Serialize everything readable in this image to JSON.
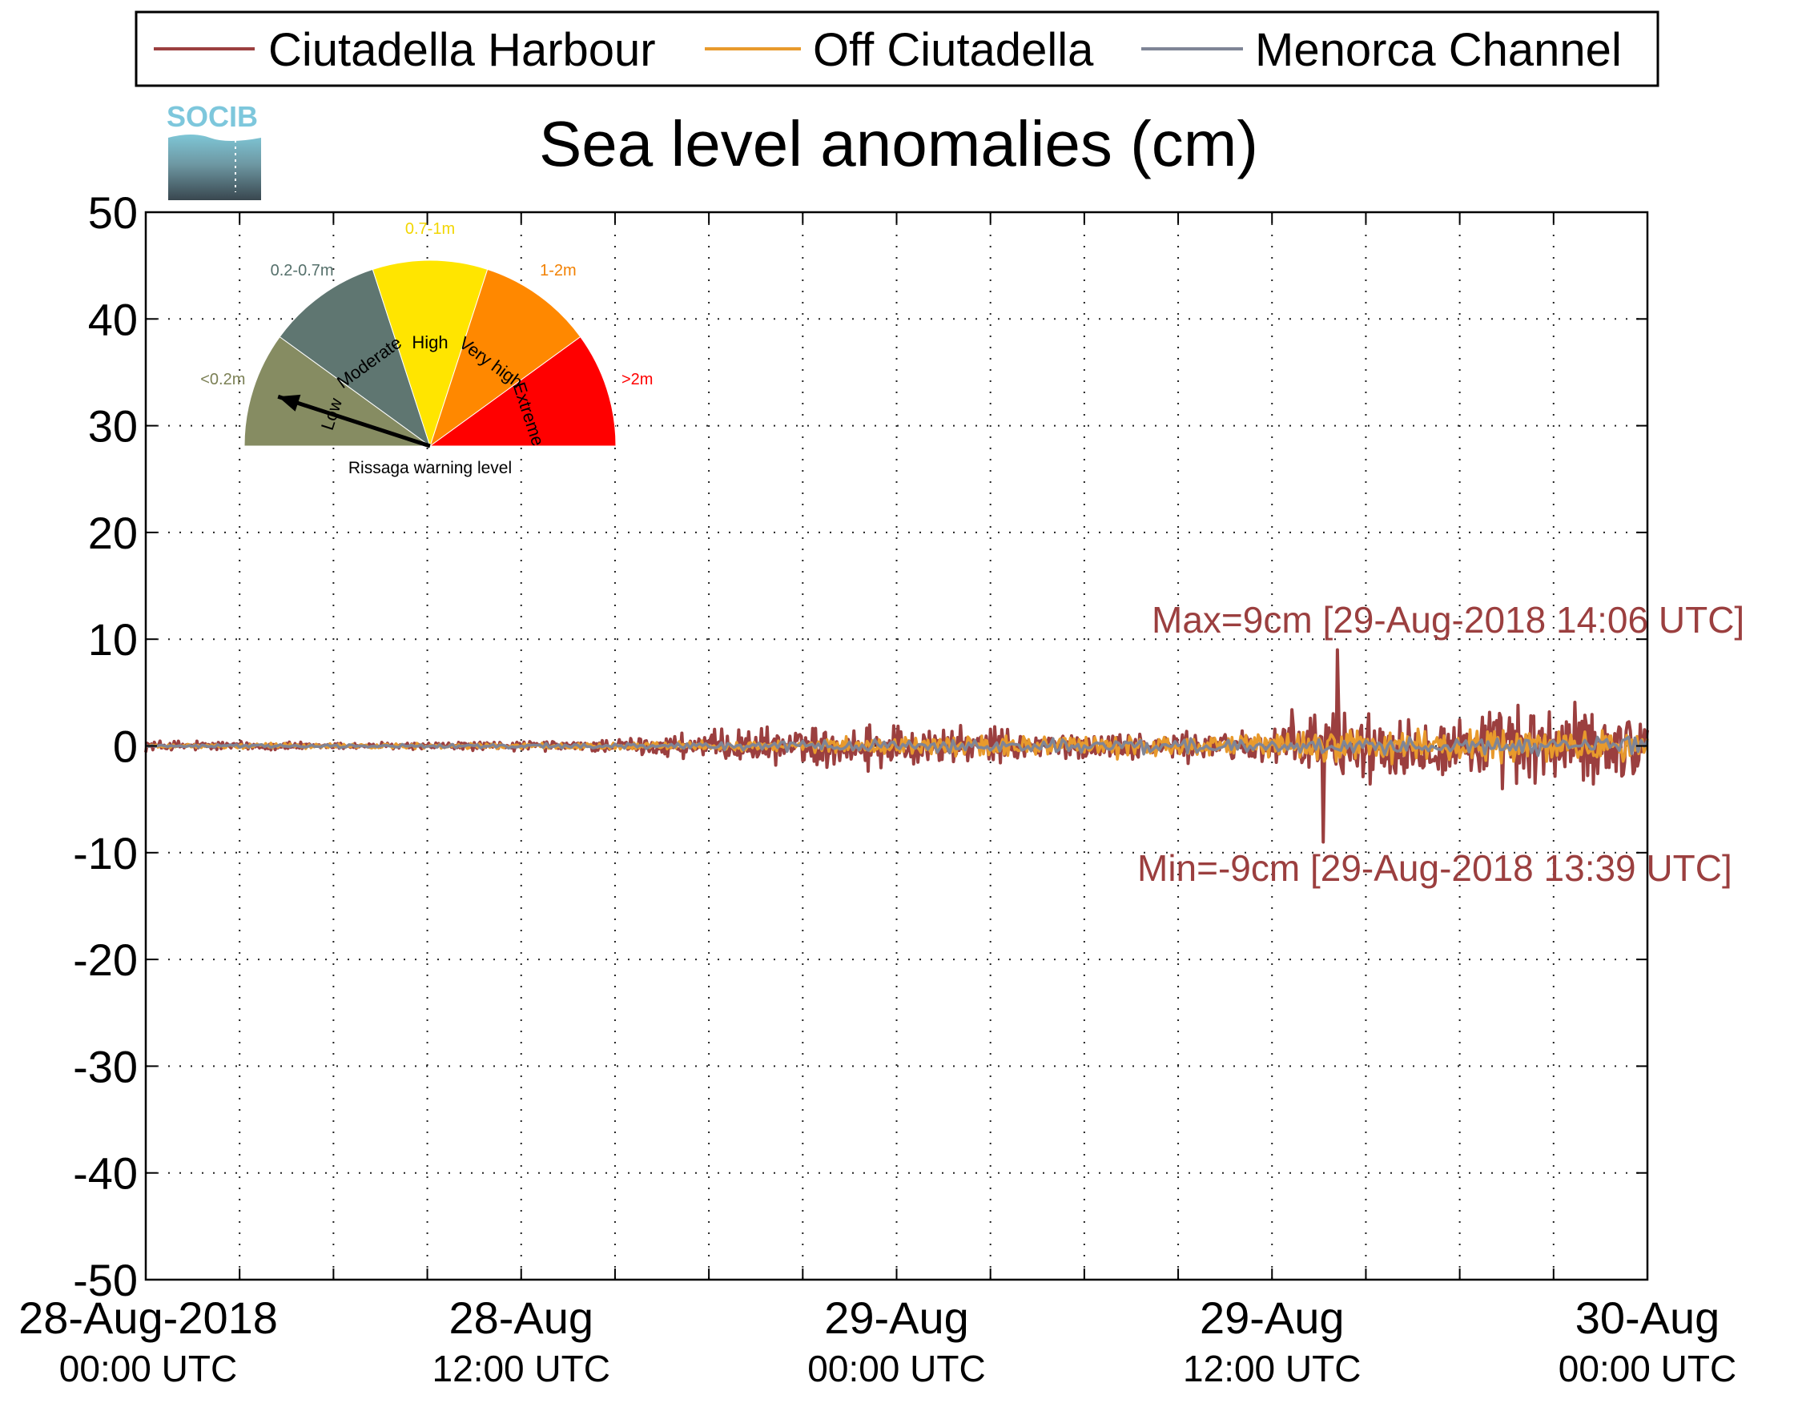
{
  "chart_data": {
    "type": "line",
    "title": "Sea level anomalies (cm)",
    "xlabel": "",
    "ylabel": "",
    "ylim": [
      -50,
      50
    ],
    "yticks": [
      50,
      40,
      30,
      20,
      10,
      0,
      -10,
      -20,
      -30,
      -40,
      -50
    ],
    "ytick_labels": [
      "50",
      "40",
      "30",
      "20",
      "10",
      "0",
      "-10",
      "-20",
      "-30",
      "-40",
      "-50"
    ],
    "xlim": [
      "2018-08-28 00:00",
      "2018-08-30 00:00"
    ],
    "x_major_ticks": [
      {
        "x": "2018-08-28 00:00",
        "label": "28-Aug-2018",
        "sublabel": "00:00 UTC"
      },
      {
        "x": "2018-08-28 12:00",
        "label": "28-Aug",
        "sublabel": "12:00 UTC"
      },
      {
        "x": "2018-08-29 00:00",
        "label": "29-Aug",
        "sublabel": "00:00 UTC"
      },
      {
        "x": "2018-08-29 12:00",
        "label": "29-Aug",
        "sublabel": "12:00 UTC"
      },
      {
        "x": "2018-08-30 00:00",
        "label": "30-Aug",
        "sublabel": "00:00 UTC"
      }
    ],
    "x_minor_tick_hours": 3,
    "grid": true,
    "legend_position": "top",
    "series": [
      {
        "name": "Ciutadella Harbour",
        "color": "#9b3f3f",
        "envelope": [
          {
            "t": "2018-08-28 00:00",
            "amp_cm": 0.8
          },
          {
            "t": "2018-08-28 06:00",
            "amp_cm": 0.4
          },
          {
            "t": "2018-08-28 14:00",
            "amp_cm": 0.7
          },
          {
            "t": "2018-08-28 18:00",
            "amp_cm": 2.0
          },
          {
            "t": "2018-08-29 00:00",
            "amp_cm": 2.8
          },
          {
            "t": "2018-08-29 06:00",
            "amp_cm": 1.6
          },
          {
            "t": "2018-08-29 10:00",
            "amp_cm": 2.0
          },
          {
            "t": "2018-08-29 12:00",
            "amp_cm": 3.2
          },
          {
            "t": "2018-08-29 13:30",
            "amp_cm": 6.0
          },
          {
            "t": "2018-08-29 15:00",
            "amp_cm": 4.5
          },
          {
            "t": "2018-08-29 20:00",
            "amp_cm": 5.2
          },
          {
            "t": "2018-08-30 00:00",
            "amp_cm": 5.5
          }
        ],
        "max": {
          "t": "2018-08-29 14:06",
          "value_cm": 9
        },
        "min": {
          "t": "2018-08-29 13:39",
          "value_cm": -9
        }
      },
      {
        "name": "Off Ciutadella",
        "color": "#e89a2c",
        "envelope": [
          {
            "t": "2018-08-28 00:00",
            "amp_cm": 0.3
          },
          {
            "t": "2018-08-28 14:00",
            "amp_cm": 0.4
          },
          {
            "t": "2018-08-29 00:00",
            "amp_cm": 1.2
          },
          {
            "t": "2018-08-29 12:00",
            "amp_cm": 1.5
          },
          {
            "t": "2018-08-29 14:00",
            "amp_cm": 2.2
          },
          {
            "t": "2018-08-30 00:00",
            "amp_cm": 2.2
          }
        ]
      },
      {
        "name": "Menorca Channel",
        "color": "#7f8596",
        "envelope": [
          {
            "t": "2018-08-28 00:00",
            "amp_cm": 0.2
          },
          {
            "t": "2018-08-28 14:00",
            "amp_cm": 0.3
          },
          {
            "t": "2018-08-29 00:00",
            "amp_cm": 0.9
          },
          {
            "t": "2018-08-29 12:00",
            "amp_cm": 1.0
          },
          {
            "t": "2018-08-30 00:00",
            "amp_cm": 1.4
          }
        ]
      }
    ],
    "annotations": [
      {
        "text": "Max=9cm [29-Aug-2018 14:06 UTC]",
        "color": "#9b3f3f"
      },
      {
        "text": "Min=-9cm [29-Aug-2018 13:39 UTC]",
        "color": "#9b3f3f"
      }
    ]
  },
  "logo": {
    "text": "SOCIB"
  },
  "gauge": {
    "caption": "Rissaga warning level",
    "needle_level": "Low",
    "segments": [
      {
        "category": "Low",
        "range": "<0.2m",
        "color": "#868c62",
        "range_color": "#7b8055"
      },
      {
        "category": "Moderate",
        "range": "0.2-0.7m",
        "color": "#5f7671",
        "range_color": "#55706b"
      },
      {
        "category": "High",
        "range": "0.7-1m",
        "color": "#ffe500",
        "range_color": "#f2d600"
      },
      {
        "category": "Very high",
        "range": "1-2m",
        "color": "#ff8800",
        "range_color": "#f28000"
      },
      {
        "category": "Extreme",
        "range": ">2m",
        "color": "#ff0000",
        "range_color": "#ff0000"
      }
    ]
  }
}
